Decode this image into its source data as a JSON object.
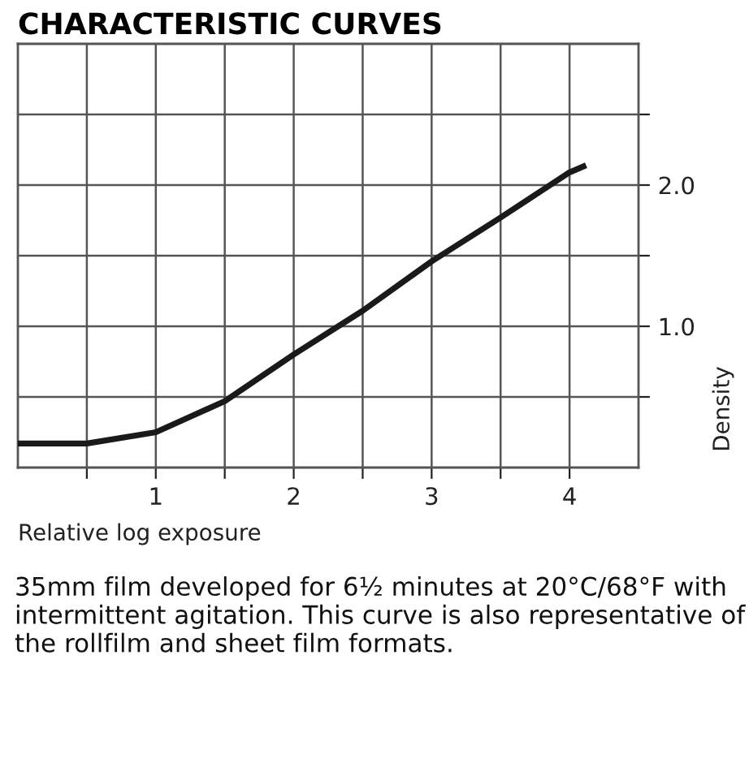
{
  "chart_data": {
    "type": "line",
    "title": "CHARACTERISTIC CURVES",
    "xlabel": "Relative log exposure",
    "ylabel": "Density",
    "annotations": [
      "35mm film developed for 6½ minutes at 20°C/68°F with intermittent agitation. This curve is also representative of the rollfilm and sheet film formats."
    ],
    "x": [
      0,
      0.5,
      1,
      1.5,
      2,
      2.5,
      3,
      3.5,
      4,
      4.12
    ],
    "series": [
      {
        "color": "#1a1a1a",
        "values": [
          0.17,
          0.17,
          0.25,
          0.47,
          0.8,
          1.11,
          1.46,
          1.77,
          2.09,
          2.14
        ]
      }
    ],
    "xlim": [
      0,
      4.5
    ],
    "ylim": [
      0,
      3
    ],
    "xticks": [
      {
        "value": 0.5,
        "label": null
      },
      1,
      {
        "value": 1.5,
        "label": null
      },
      2,
      {
        "value": 2.5,
        "label": null
      },
      3,
      {
        "value": 3.5,
        "label": null
      },
      4
    ],
    "yticks": [
      {
        "value": 0.5,
        "label": null
      },
      {
        "value": 1,
        "label": "1.0"
      },
      {
        "value": 1.5,
        "label": null
      },
      {
        "value": 2,
        "label": "2.0"
      },
      {
        "value": 2.5,
        "label": null
      }
    ],
    "grid": true,
    "marker": "none",
    "line_style": "solid"
  }
}
